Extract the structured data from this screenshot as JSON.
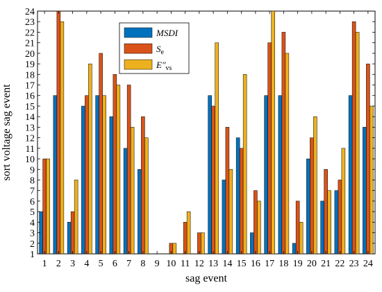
{
  "chart_data": {
    "type": "bar",
    "title": "",
    "xlabel": "sag event",
    "ylabel": "sort voltage sag event",
    "ylim": [
      1,
      24
    ],
    "yticks": [
      1,
      2,
      3,
      4,
      5,
      6,
      7,
      8,
      9,
      10,
      11,
      12,
      13,
      14,
      15,
      16,
      17,
      18,
      19,
      20,
      21,
      22,
      23,
      24
    ],
    "categories": [
      "1",
      "2",
      "3",
      "4",
      "5",
      "6",
      "7",
      "8",
      "9",
      "10",
      "11",
      "12",
      "13",
      "14",
      "15",
      "16",
      "17",
      "18",
      "19",
      "20",
      "21",
      "22",
      "23",
      "24"
    ],
    "grid": false,
    "legend_position": "top-center",
    "series": [
      {
        "name": "MSDI",
        "legend_main": "MSDI",
        "legend_sub": "",
        "color": "#0072BD",
        "values": [
          5,
          16,
          4,
          15,
          16,
          14,
          11,
          9,
          0,
          0,
          0,
          0,
          16,
          8,
          12,
          3,
          16,
          16,
          2,
          10,
          6,
          7,
          16,
          13
        ]
      },
      {
        "name": "Se",
        "legend_main": "S",
        "legend_sub": "e",
        "color": "#D95319",
        "values": [
          10,
          24,
          5,
          16,
          20,
          18,
          17,
          14,
          0,
          2,
          4,
          3,
          15,
          13,
          11,
          7,
          21,
          22,
          6,
          12,
          9,
          8,
          23,
          19
        ]
      },
      {
        "name": "E\"vs",
        "legend_main": "E\"",
        "legend_sub": "vs",
        "color": "#EDB120",
        "values": [
          10,
          23,
          8,
          19,
          16,
          17,
          13,
          12,
          0,
          2,
          5,
          3,
          21,
          9,
          18,
          6,
          24,
          20,
          4,
          14,
          7,
          11,
          22,
          15
        ]
      }
    ]
  }
}
